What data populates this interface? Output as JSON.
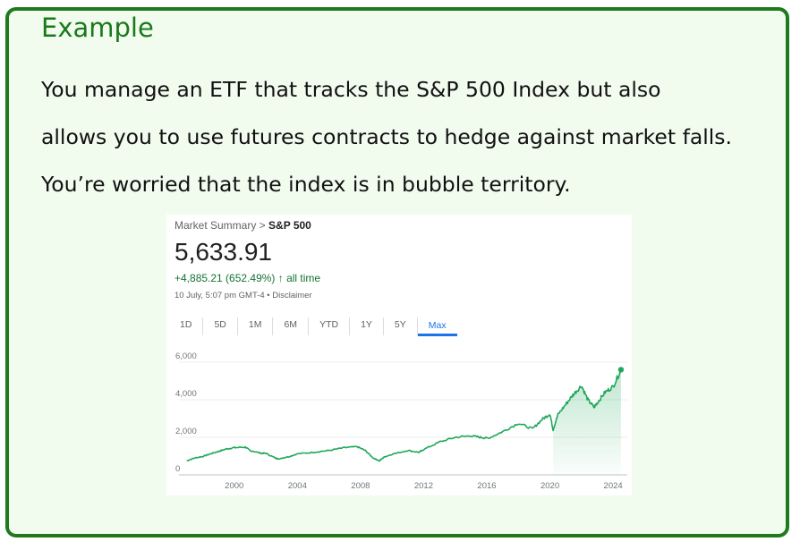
{
  "example": {
    "title": "Example",
    "lines": [
      "You manage an ETF that tracks the S&P 500 Index but also",
      "allows you to use futures contracts to hedge against market falls.",
      "You’re worried that the index is in bubble territory."
    ]
  },
  "market": {
    "breadcrumb_prefix": "Market Summary > ",
    "breadcrumb_current": "S&P 500",
    "price": "5,633.91",
    "change": "+4,885.21 (652.49%) ↑ all time",
    "timestamp": "10 July, 5:07 pm GMT-4 • Disclaimer",
    "ranges": [
      "1D",
      "5D",
      "1M",
      "6M",
      "YTD",
      "1Y",
      "5Y",
      "Max"
    ],
    "active_range": "Max"
  },
  "colors": {
    "frame": "#1f7a1f",
    "box_bg": "#f1fbee",
    "title": "#1a7a1a",
    "line": "#1fa85a",
    "positive": "#137333",
    "active_tab": "#1a73e8"
  },
  "chart_data": {
    "type": "area",
    "title": "S&P 500",
    "xlabel": "",
    "ylabel": "",
    "xlim": [
      1996.5,
      2024.9
    ],
    "ylim": [
      0,
      6000
    ],
    "yticks": [
      0,
      2000,
      4000,
      6000
    ],
    "ytick_labels": [
      "0",
      "2,000",
      "4,000",
      "6,000"
    ],
    "xticks": [
      2000,
      2004,
      2008,
      2012,
      2016,
      2020,
      2024
    ],
    "xtick_labels": [
      "2000",
      "2004",
      "2008",
      "2012",
      "2016",
      "2020",
      "2024"
    ],
    "grid": true,
    "shaded_from": 2020.2,
    "series": [
      {
        "name": "S&P 500",
        "x": [
          1997.0,
          1997.5,
          1998.0,
          1998.5,
          1999.0,
          1999.5,
          2000.0,
          2000.7,
          2001.0,
          2001.7,
          2002.0,
          2002.6,
          2002.8,
          2003.5,
          2004.0,
          2005.0,
          2006.0,
          2007.0,
          2007.8,
          2008.3,
          2008.8,
          2009.2,
          2009.5,
          2010.0,
          2011.0,
          2011.7,
          2012.0,
          2013.0,
          2014.0,
          2015.0,
          2015.6,
          2016.1,
          2017.0,
          2018.0,
          2018.9,
          2019.5,
          2020.0,
          2020.2,
          2020.5,
          2021.0,
          2021.5,
          2022.0,
          2022.4,
          2022.8,
          2023.0,
          2023.5,
          2024.0,
          2024.5
        ],
        "values": [
          750,
          900,
          980,
          1120,
          1250,
          1380,
          1450,
          1480,
          1300,
          1150,
          1150,
          900,
          850,
          980,
          1120,
          1200,
          1300,
          1450,
          1500,
          1300,
          900,
          750,
          950,
          1100,
          1300,
          1200,
          1350,
          1750,
          2000,
          2080,
          2000,
          1950,
          2300,
          2750,
          2450,
          2950,
          3250,
          2400,
          3200,
          3750,
          4300,
          4750,
          4000,
          3600,
          3850,
          4400,
          4700,
          5600
        ]
      }
    ]
  }
}
